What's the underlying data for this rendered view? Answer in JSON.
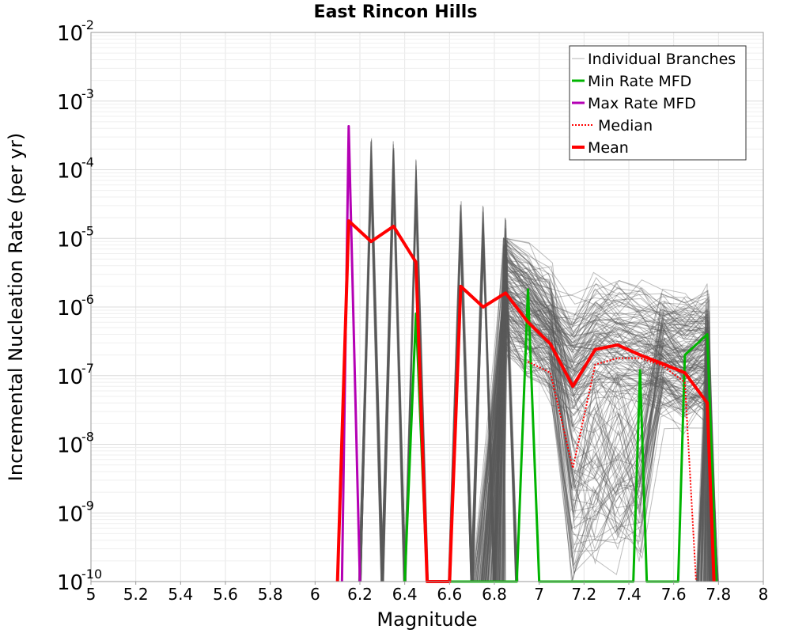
{
  "chart_data": {
    "type": "line",
    "title": "East Rincon Hills",
    "xlabel": "Magnitude",
    "ylabel": "Incremental Nucleation Rate (per yr)",
    "xlim": [
      5,
      8
    ],
    "ylim": [
      1e-10,
      0.01
    ],
    "yscale": "log",
    "grid": true,
    "legend_position": "top-right",
    "x_ticks": [
      "5",
      "5.2",
      "5.4",
      "5.6",
      "5.8",
      "6",
      "6.2",
      "6.4",
      "6.6",
      "6.8",
      "7",
      "7.2",
      "7.4",
      "7.6",
      "7.8",
      "8"
    ],
    "x_tick_values": [
      5,
      5.2,
      5.4,
      5.6,
      5.8,
      6,
      6.2,
      6.4,
      6.6,
      6.8,
      7,
      7.2,
      7.4,
      7.6,
      7.8,
      8
    ],
    "y_ticks": [
      {
        "base": "10",
        "exp": "-2",
        "value": 0.01
      },
      {
        "base": "10",
        "exp": "-3",
        "value": 0.001
      },
      {
        "base": "10",
        "exp": "-4",
        "value": 0.0001
      },
      {
        "base": "10",
        "exp": "-5",
        "value": 1e-05
      },
      {
        "base": "10",
        "exp": "-6",
        "value": 1e-06
      },
      {
        "base": "10",
        "exp": "-7",
        "value": 1e-07
      },
      {
        "base": "10",
        "exp": "-8",
        "value": 1e-08
      },
      {
        "base": "10",
        "exp": "-9",
        "value": 1e-09
      },
      {
        "base": "10",
        "exp": "-10",
        "value": 1e-10
      }
    ],
    "legend": [
      {
        "label": "Individual Branches",
        "color": "#b4b4b4",
        "style": "thin"
      },
      {
        "label": "Min Rate MFD",
        "color": "#00b400",
        "style": "solid"
      },
      {
        "label": "Max Rate MFD",
        "color": "#b400b4",
        "style": "solid"
      },
      {
        "label": "Median",
        "color": "#ff0000",
        "style": "dotted"
      },
      {
        "label": "Mean",
        "color": "#ff0000",
        "style": "thick"
      }
    ],
    "series": [
      {
        "name": "Mean",
        "color": "#ff0000",
        "style": "thick",
        "x": [
          6.1,
          6.15,
          6.25,
          6.35,
          6.45,
          6.5,
          6.6,
          6.65,
          6.75,
          6.85,
          6.95,
          7.05,
          7.15,
          7.25,
          7.35,
          7.45,
          7.55,
          7.65,
          7.75,
          7.78
        ],
        "y": [
          1e-10,
          1.8e-05,
          9e-06,
          1.5e-05,
          4.5e-06,
          1e-10,
          1e-10,
          2e-06,
          1e-06,
          1.6e-06,
          6e-07,
          2.9e-07,
          7e-08,
          2.4e-07,
          2.8e-07,
          2e-07,
          1.5e-07,
          1.1e-07,
          4e-08,
          1e-10
        ]
      },
      {
        "name": "Median",
        "color": "#ff0000",
        "style": "dotted",
        "x": [
          6.95,
          7.05,
          7.15,
          7.25,
          7.35,
          7.45,
          7.55,
          7.65,
          7.7
        ],
        "y": [
          1.6e-07,
          1.1e-07,
          4.5e-09,
          1.45e-07,
          1.8e-07,
          1.8e-07,
          1.4e-07,
          8e-08,
          1e-10
        ]
      },
      {
        "name": "Min Rate MFD",
        "color": "#00b400",
        "style": "solid",
        "x": [
          6.4,
          6.45,
          6.5,
          6.9,
          6.95,
          7.0,
          7.42,
          7.45,
          7.48,
          7.62,
          7.65,
          7.75,
          7.79
        ],
        "y": [
          1e-10,
          8e-07,
          1e-10,
          1e-10,
          1.8e-06,
          1e-10,
          1e-10,
          1.2e-07,
          1e-10,
          1e-10,
          2e-07,
          4e-07,
          1e-10
        ]
      },
      {
        "name": "Max Rate MFD",
        "color": "#b400b4",
        "style": "solid",
        "x": [
          6.12,
          6.15,
          6.2
        ],
        "y": [
          1e-10,
          0.00043,
          1e-10
        ]
      }
    ]
  }
}
